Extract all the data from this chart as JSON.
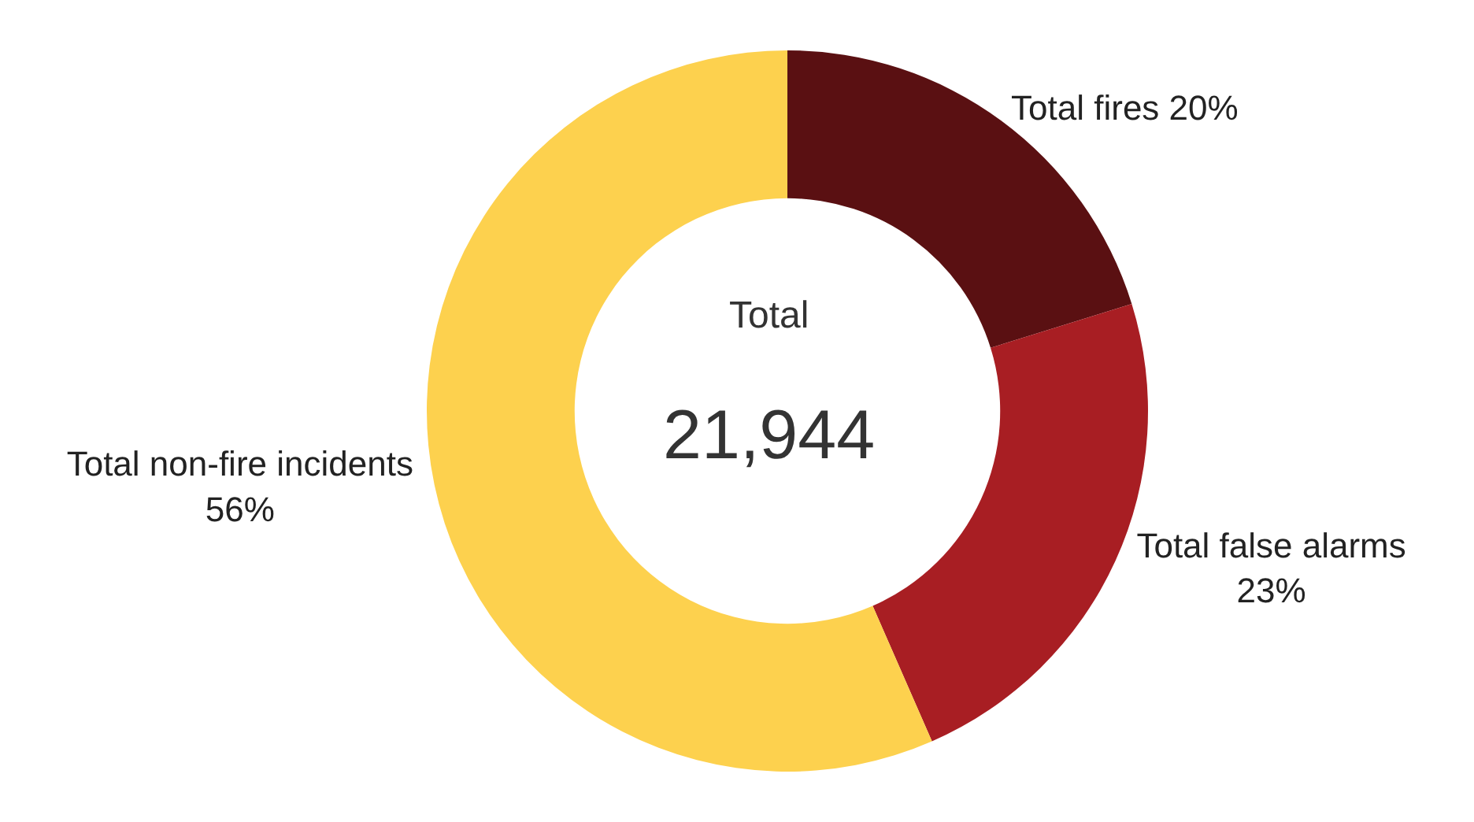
{
  "chart_data": {
    "type": "donut",
    "categories": [
      "Total fires",
      "Total false alarms",
      "Total non-fire incidents"
    ],
    "values": [
      20,
      23,
      56
    ],
    "colors": [
      "#5a1012",
      "#a81e23",
      "#fdd14e"
    ],
    "value_labels": [
      "20%",
      "23%",
      "56%"
    ],
    "annotations": [
      "Total",
      "21,944"
    ],
    "legend": false
  }
}
